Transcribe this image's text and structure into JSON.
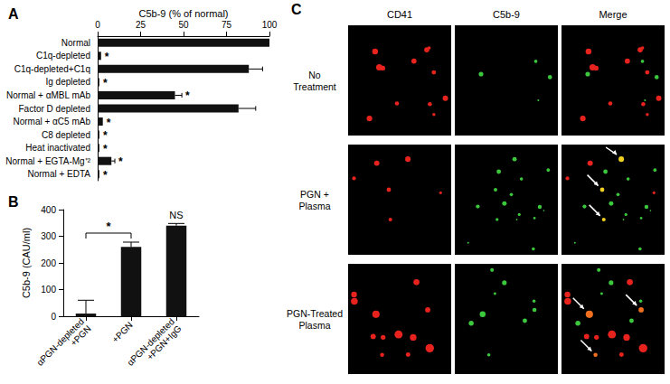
{
  "chart_data": [
    {
      "type": "bar",
      "title": "A",
      "orientation": "horizontal",
      "x_label": "C5b-9 (% of normal)",
      "categories": [
        "Normal",
        "C1q-depleted",
        "C1q-depleted+C1q",
        "Ig depleted",
        "Normal + αMBL mAb",
        "Factor D depleted",
        "Normal + αC5 mAb",
        "C8 depleted",
        "Heat inactivated",
        "Normal + EGTA-Mg⁺²",
        "Normal + EDTA"
      ],
      "values": [
        100,
        2,
        88,
        1,
        45,
        82,
        3,
        1,
        1,
        8,
        1
      ],
      "errors": [
        0,
        0,
        8,
        0,
        4,
        10,
        0,
        0,
        0,
        2,
        0
      ],
      "annotations": [
        {
          "category": "C1q-depleted",
          "text": "*"
        },
        {
          "category": "Ig depleted",
          "text": "*"
        },
        {
          "category": "Normal + αMBL mAb",
          "text": "*"
        },
        {
          "category": "Normal + αC5 mAb",
          "text": "*"
        },
        {
          "category": "C8 depleted",
          "text": "*"
        },
        {
          "category": "Heat inactivated",
          "text": "*"
        },
        {
          "category": "Normal + EGTA-Mg⁺²",
          "text": "*"
        },
        {
          "category": "Normal + EDTA",
          "text": "*"
        }
      ],
      "color": "#111111",
      "xlim": [
        0,
        100
      ],
      "xticks": [
        0,
        25,
        50,
        75,
        100
      ],
      "grid": false
    },
    {
      "type": "bar",
      "title": "B",
      "y_label": "C5b-9 (CAU/ml)",
      "categories": [
        "αPGN-depleted +PGN",
        "+PGN",
        "αPGN-depleted +PGN+IgG"
      ],
      "values": [
        10,
        260,
        340
      ],
      "errors": [
        50,
        18,
        8
      ],
      "annotations": [
        {
          "categories": [
            "αPGN-depleted +PGN",
            "+PGN"
          ],
          "text": "*"
        },
        {
          "category": "αPGN-depleted +PGN+IgG",
          "text": "NS"
        }
      ],
      "color": "#111111",
      "ylim": [
        0,
        400
      ],
      "yticks": [
        0,
        100,
        200,
        300,
        400
      ],
      "grid": false
    }
  ],
  "image_panel": {
    "title": "C",
    "columns": [
      "CD41",
      "C5b-9",
      "Merge"
    ],
    "rows": [
      "No Treatment",
      "PGN + Plasma",
      "PGN-Treated Plasma"
    ]
  }
}
